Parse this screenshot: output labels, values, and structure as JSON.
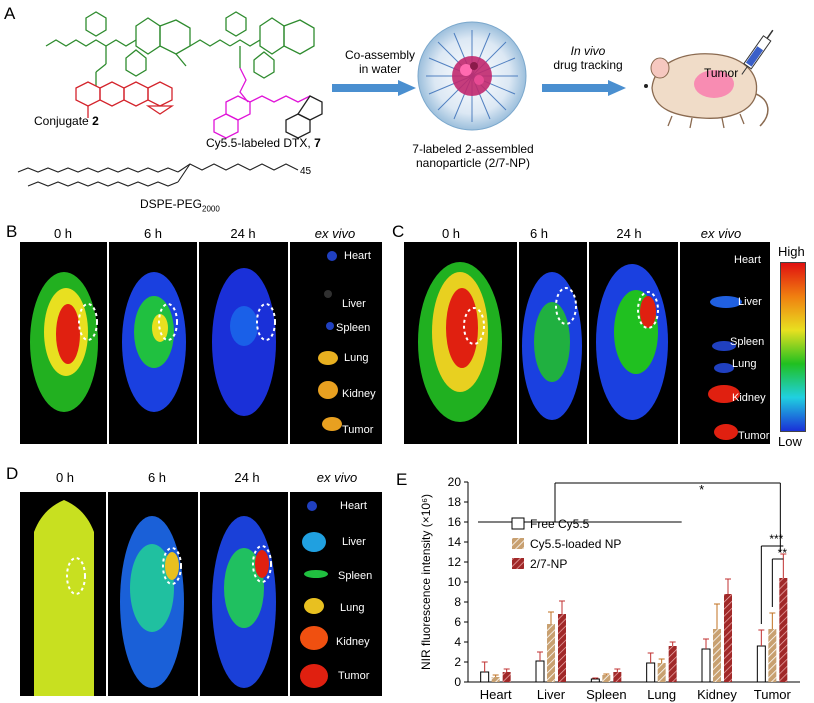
{
  "panels": {
    "A": "A",
    "B": "B",
    "C": "C",
    "D": "D",
    "E": "E"
  },
  "panelA": {
    "conjugate_label": "Conjugate",
    "conjugate_num": "2",
    "cy_label": "Cy5.5-labeled DTX,",
    "cy_num": "7",
    "dspe_label": "DSPE-PEG",
    "dspe_sub": "2000",
    "peg_n": "45",
    "arrow1_line1": "Co-assembly",
    "arrow1_line2": "in water",
    "arrow2_line1": "In vivo",
    "arrow2_line2": "drug tracking",
    "np_line1": "7-labeled 2-assembled",
    "np_line2": "nanoparticle (2/7-NP)",
    "tumor": "Tumor"
  },
  "imaging": {
    "times": [
      "0 h",
      "6 h",
      "24 h",
      "ex vivo"
    ],
    "organs": [
      "Heart",
      "Liver",
      "Spleen",
      "Lung",
      "Kidney",
      "Tumor"
    ],
    "scale_high": "High",
    "scale_low": "Low"
  },
  "chart_data": {
    "type": "bar",
    "ylabel": "NIR fluorescence intensity (×10⁶)",
    "ylim": [
      0,
      20
    ],
    "yticks": [
      0,
      2,
      4,
      6,
      8,
      10,
      12,
      14,
      16,
      18,
      20
    ],
    "categories": [
      "Heart",
      "Liver",
      "Spleen",
      "Lung",
      "Kidney",
      "Tumor"
    ],
    "series": [
      {
        "name": "Free Cy5.5",
        "values": [
          1.0,
          2.1,
          0.3,
          1.9,
          3.3,
          3.6
        ],
        "errors": [
          1.0,
          0.9,
          0.1,
          1.0,
          1.0,
          1.6
        ],
        "color": "#ffffff"
      },
      {
        "name": "Cy5.5-loaded NP",
        "values": [
          0.5,
          5.8,
          0.7,
          1.9,
          5.3,
          5.3
        ],
        "errors": [
          0.2,
          1.2,
          0.1,
          0.4,
          2.5,
          1.6
        ],
        "color": "#c8a070"
      },
      {
        "name": "2/7-NP",
        "values": [
          1.0,
          6.8,
          1.0,
          3.6,
          8.8,
          10.4
        ],
        "errors": [
          0.3,
          1.3,
          0.3,
          0.4,
          1.5,
          2.4
        ],
        "color": "#a02828"
      }
    ],
    "annotations": {
      "star1": "*",
      "star3": "***",
      "star2": "**"
    }
  }
}
